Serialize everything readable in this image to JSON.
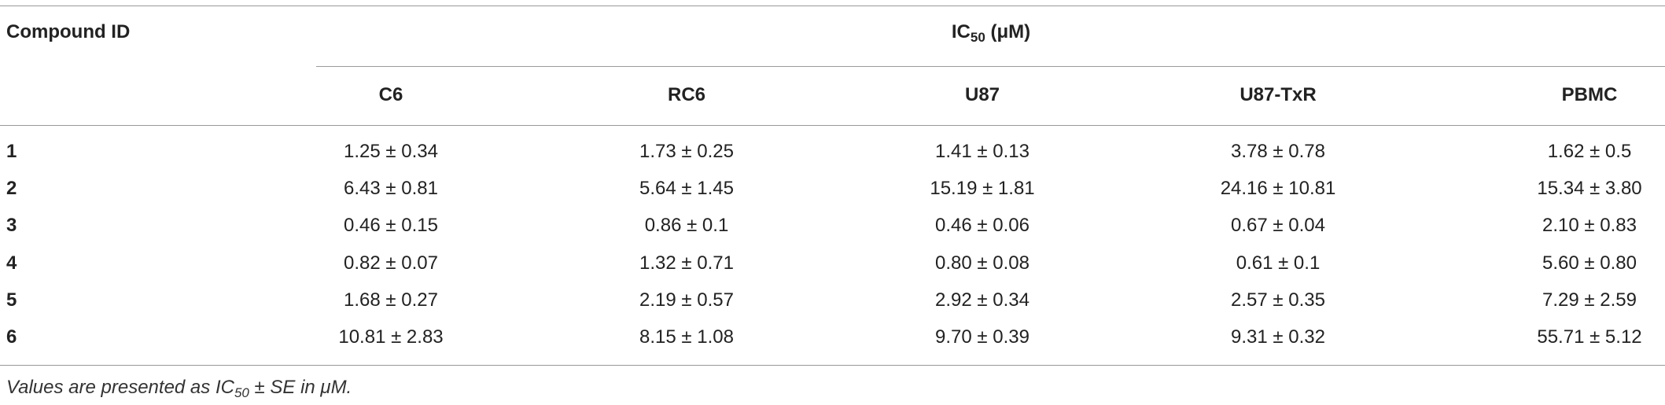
{
  "table": {
    "header": {
      "compound": "Compound ID",
      "group": [
        "IC",
        "50",
        " (μM)"
      ]
    },
    "columns": [
      "C6",
      "RC6",
      "U87",
      "U87-TxR",
      "PBMC"
    ],
    "rows": [
      [
        "1",
        "1.25 ± 0.34",
        "1.73 ± 0.25",
        "1.41 ± 0.13",
        "3.78 ± 0.78",
        "1.62 ± 0.5"
      ],
      [
        "2",
        "6.43 ± 0.81",
        "5.64 ± 1.45",
        "15.19 ± 1.81",
        "24.16 ± 10.81",
        "15.34 ± 3.80"
      ],
      [
        "3",
        "0.46 ± 0.15",
        "0.86 ± 0.1",
        "0.46 ± 0.06",
        "0.67 ± 0.04",
        "2.10 ± 0.83"
      ],
      [
        "4",
        "0.82 ± 0.07",
        "1.32 ± 0.71",
        "0.80 ± 0.08",
        "0.61 ± 0.1",
        "5.60 ± 0.80"
      ],
      [
        "5",
        "1.68 ± 0.27",
        "2.19 ± 0.57",
        "2.92 ± 0.34",
        "2.57 ± 0.35",
        "7.29 ± 2.59"
      ],
      [
        "6",
        "10.81 ± 2.83",
        "8.15 ± 1.08",
        "9.70 ± 0.39",
        "9.31 ± 0.32",
        "55.71 ± 5.12"
      ]
    ],
    "footnote": [
      "Values are presented as IC",
      "50",
      " ± SE in μM."
    ]
  }
}
